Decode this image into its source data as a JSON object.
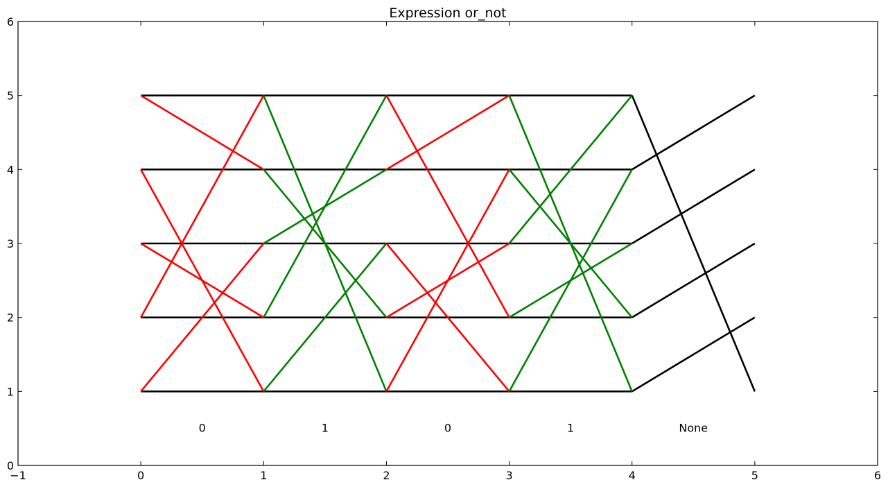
{
  "chart_data": {
    "type": "line",
    "title": "Expression or_not",
    "xlabel": "",
    "ylabel": "",
    "xlim": [
      -1,
      6
    ],
    "ylim": [
      0,
      6
    ],
    "xticks": [
      -1,
      0,
      1,
      2,
      3,
      4,
      5,
      6
    ],
    "yticks": [
      0,
      1,
      2,
      3,
      4,
      5,
      6
    ],
    "xtick_labels": [
      "−1",
      "0",
      "1",
      "2",
      "3",
      "4",
      "5",
      "6"
    ],
    "ytick_labels": [
      "0",
      "1",
      "2",
      "3",
      "4",
      "5",
      "6"
    ],
    "grid": false,
    "colors": {
      "black": "#000000",
      "red": "#ff0000",
      "green": "#008000"
    },
    "segments": [
      {
        "color": "black",
        "points": [
          [
            0,
            1
          ],
          [
            4,
            1
          ]
        ]
      },
      {
        "color": "black",
        "points": [
          [
            0,
            2
          ],
          [
            4,
            2
          ]
        ]
      },
      {
        "color": "black",
        "points": [
          [
            0,
            3
          ],
          [
            4,
            3
          ]
        ]
      },
      {
        "color": "black",
        "points": [
          [
            0,
            4
          ],
          [
            4,
            4
          ]
        ]
      },
      {
        "color": "black",
        "points": [
          [
            0,
            5
          ],
          [
            4,
            5
          ]
        ]
      },
      {
        "color": "black",
        "points": [
          [
            4,
            1
          ],
          [
            5,
            2
          ]
        ]
      },
      {
        "color": "black",
        "points": [
          [
            4,
            2
          ],
          [
            5,
            3
          ]
        ]
      },
      {
        "color": "black",
        "points": [
          [
            4,
            3
          ],
          [
            5,
            4
          ]
        ]
      },
      {
        "color": "black",
        "points": [
          [
            4,
            4
          ],
          [
            5,
            5
          ]
        ]
      },
      {
        "color": "black",
        "points": [
          [
            4,
            5
          ],
          [
            5,
            1
          ]
        ]
      },
      {
        "color": "red",
        "points": [
          [
            0,
            5
          ],
          [
            1,
            4
          ]
        ]
      },
      {
        "color": "red",
        "points": [
          [
            0,
            4
          ],
          [
            1,
            1
          ]
        ]
      },
      {
        "color": "red",
        "points": [
          [
            0,
            3
          ],
          [
            1,
            2
          ]
        ]
      },
      {
        "color": "red",
        "points": [
          [
            0,
            2
          ],
          [
            1,
            5
          ]
        ]
      },
      {
        "color": "red",
        "points": [
          [
            0,
            1
          ],
          [
            1,
            3
          ]
        ]
      },
      {
        "color": "green",
        "points": [
          [
            1,
            5
          ],
          [
            2,
            1
          ]
        ]
      },
      {
        "color": "green",
        "points": [
          [
            1,
            4
          ],
          [
            2,
            2
          ]
        ]
      },
      {
        "color": "green",
        "points": [
          [
            1,
            3
          ],
          [
            2,
            4
          ]
        ]
      },
      {
        "color": "green",
        "points": [
          [
            1,
            2
          ],
          [
            2,
            5
          ]
        ]
      },
      {
        "color": "green",
        "points": [
          [
            1,
            1
          ],
          [
            2,
            3
          ]
        ]
      },
      {
        "color": "red",
        "points": [
          [
            2,
            5
          ],
          [
            3,
            2
          ]
        ]
      },
      {
        "color": "red",
        "points": [
          [
            2,
            4
          ],
          [
            3,
            5
          ]
        ]
      },
      {
        "color": "red",
        "points": [
          [
            2,
            3
          ],
          [
            3,
            1
          ]
        ]
      },
      {
        "color": "red",
        "points": [
          [
            2,
            2
          ],
          [
            3,
            3
          ]
        ]
      },
      {
        "color": "red",
        "points": [
          [
            2,
            1
          ],
          [
            3,
            4
          ]
        ]
      },
      {
        "color": "green",
        "points": [
          [
            3,
            5
          ],
          [
            4,
            1
          ]
        ]
      },
      {
        "color": "green",
        "points": [
          [
            3,
            4
          ],
          [
            4,
            2
          ]
        ]
      },
      {
        "color": "green",
        "points": [
          [
            3,
            3
          ],
          [
            4,
            5
          ]
        ]
      },
      {
        "color": "green",
        "points": [
          [
            3,
            2
          ],
          [
            4,
            3
          ]
        ]
      },
      {
        "color": "green",
        "points": [
          [
            3,
            1
          ],
          [
            4,
            4
          ]
        ]
      }
    ],
    "annotations": [
      {
        "x": 0.5,
        "y": 0.5,
        "text": "0"
      },
      {
        "x": 1.5,
        "y": 0.5,
        "text": "1"
      },
      {
        "x": 2.5,
        "y": 0.5,
        "text": "0"
      },
      {
        "x": 3.5,
        "y": 0.5,
        "text": "1"
      },
      {
        "x": 4.5,
        "y": 0.5,
        "text": "None"
      }
    ]
  }
}
